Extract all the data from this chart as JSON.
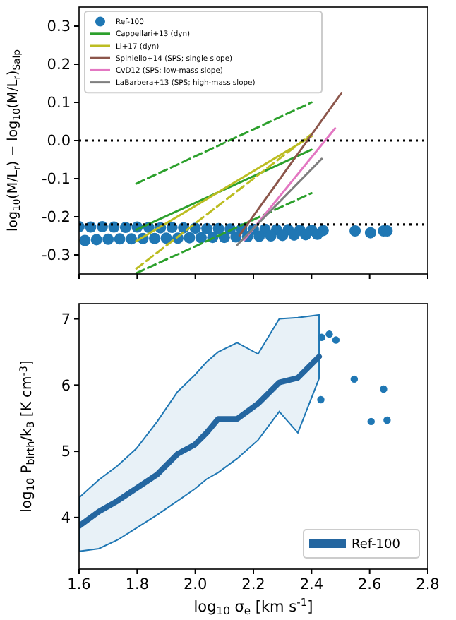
{
  "chart_data": [
    {
      "type": "line",
      "ylabel": "log$_{10}$(M/L$_{r}$) − log$_{10}$(M/L$_{r}$)$_{Salp}$",
      "xlim": [
        1.6,
        2.8
      ],
      "xticks": [
        1.6,
        1.8,
        2.0,
        2.2,
        2.4,
        2.6,
        2.8
      ],
      "ylim": [
        -0.35,
        0.35
      ],
      "yticks": [
        -0.3,
        -0.2,
        -0.1,
        {
          "value": 0,
          "label": "0.0"
        },
        0.1,
        0.2,
        0.3
      ],
      "tick_labels": "y",
      "legend": "top left",
      "ref_lines": [
        {
          "axis": "y",
          "value": 0,
          "line_style": "dotted",
          "color": "#000000"
        },
        {
          "axis": "y",
          "value": -0.22,
          "line_style": "dotted",
          "color": "#000000"
        }
      ],
      "series": [
        {
          "type": "scatter",
          "name": "Ref-100",
          "color": "#1f77b4",
          "marker": "circle",
          "x": [
            1.6,
            1.64,
            1.68,
            1.72,
            1.76,
            1.8,
            1.84,
            1.88,
            1.92,
            1.96,
            2.0,
            2.04,
            2.08,
            2.12,
            2.16,
            2.2,
            2.24,
            2.28,
            2.32,
            2.36,
            2.4,
            2.44,
            1.62,
            1.66,
            1.7,
            1.74,
            1.78,
            1.82,
            1.86,
            1.9,
            1.94,
            1.98,
            2.02,
            2.06,
            2.1,
            2.14,
            2.18,
            2.22,
            2.26,
            2.3,
            2.34,
            2.38,
            2.42,
            2.55,
            2.603,
            2.648,
            2.66
          ],
          "values": [
            -0.226,
            -0.227,
            -0.226,
            -0.227,
            -0.228,
            -0.227,
            -0.228,
            -0.229,
            -0.228,
            -0.229,
            -0.23,
            -0.231,
            -0.231,
            -0.232,
            -0.232,
            -0.233,
            -0.233,
            -0.234,
            -0.234,
            -0.235,
            -0.235,
            -0.236,
            -0.262,
            -0.26,
            -0.259,
            -0.258,
            -0.258,
            -0.257,
            -0.257,
            -0.256,
            -0.256,
            -0.255,
            -0.255,
            -0.254,
            -0.254,
            -0.253,
            -0.252,
            -0.251,
            -0.25,
            -0.249,
            -0.248,
            -0.247,
            -0.246,
            -0.237,
            -0.242,
            -0.237,
            -0.237
          ]
        },
        {
          "name": "Cappellari+13 (dyn)",
          "color": "#2ca02c",
          "line_style": "solid",
          "x": [
            1.797,
            2.4
          ],
          "values": [
            -0.234,
            -0.024
          ]
        },
        {
          "color": "#2ca02c",
          "line_style": "dashed",
          "x": [
            1.797,
            2.4
          ],
          "values": [
            -0.113,
            0.1
          ]
        },
        {
          "color": "#2ca02c",
          "line_style": "dashed",
          "x": [
            1.797,
            2.4
          ],
          "values": [
            -0.348,
            -0.138
          ]
        },
        {
          "name": "Li+17 (dyn)",
          "color": "#bcbd22",
          "line_style": "solid",
          "x": [
            1.797,
            2.4
          ],
          "values": [
            -0.264,
            0.011
          ]
        },
        {
          "color": "#bcbd22",
          "line_style": "dashed",
          "x": [
            1.797,
            2.4
          ],
          "values": [
            -0.336,
            0.017
          ]
        },
        {
          "name": "Spiniello+14 (SPS; single slope)",
          "color": "#8c564b",
          "line_style": "solid",
          "x": [
            2.152,
            2.503
          ],
          "values": [
            -0.249,
            0.125
          ]
        },
        {
          "name": "CvD12 (SPS; low-mass slope)",
          "color": "#e377c2",
          "line_style": "solid",
          "x": [
            2.168,
            2.481
          ],
          "values": [
            -0.261,
            0.032
          ]
        },
        {
          "name": "LaBarbera+13 (SPS; high-mass slope)",
          "color": "#7f7f7f",
          "line_style": "solid",
          "x": [
            2.144,
            2.435
          ],
          "values": [
            -0.274,
            -0.048
          ]
        }
      ]
    },
    {
      "type": "line",
      "xlabel": "log$_{10}$ σ$_{e}$ [km s$^{-1}$]",
      "ylabel": "log$_{10}$ P$_{birth}$/k$_{B}$ [K cm$^{-3}$]",
      "xlim": [
        1.6,
        2.8
      ],
      "xticks": [
        1.6,
        1.8,
        {
          "value": 2,
          "label": "2.0"
        },
        2.2,
        2.4,
        2.6,
        2.8
      ],
      "ylim": [
        3.22,
        7.23
      ],
      "yticks": [
        4,
        5,
        6,
        7
      ],
      "legend": "bottom right",
      "series": [
        {
          "name": "Ref-100",
          "color": "#2466a0",
          "line_style": "solid",
          "x": [
            1.6,
            1.668,
            1.732,
            1.797,
            1.869,
            1.939,
            1.998,
            2.039,
            2.079,
            2.144,
            2.216,
            2.289,
            2.353,
            2.426
          ],
          "values": [
            3.87,
            4.09,
            4.25,
            4.44,
            4.65,
            4.96,
            5.1,
            5.28,
            5.49,
            5.49,
            5.72,
            6.04,
            6.11,
            6.43
          ],
          "lower": [
            3.49,
            3.53,
            3.66,
            3.84,
            4.04,
            4.25,
            4.43,
            4.58,
            4.68,
            4.89,
            5.17,
            5.6,
            5.28,
            6.1
          ],
          "upper": [
            4.3,
            4.57,
            4.78,
            5.04,
            5.45,
            5.9,
            6.15,
            6.35,
            6.5,
            6.64,
            6.47,
            7.0,
            7.02,
            7.06
          ]
        },
        {
          "type": "scatter",
          "color": "#1f77b4",
          "marker": "circle",
          "x": [
            2.435,
            2.461,
            2.484,
            2.432,
            2.547,
            2.605,
            2.648,
            2.66
          ],
          "values": [
            6.72,
            6.77,
            6.68,
            5.78,
            6.09,
            5.45,
            5.94,
            5.47
          ]
        }
      ]
    }
  ]
}
